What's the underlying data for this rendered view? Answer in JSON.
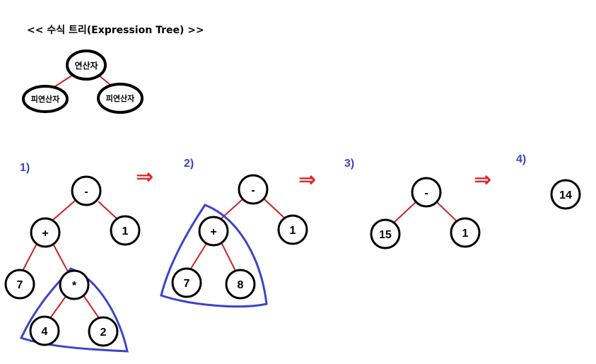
{
  "title": "<< 수식 트리(Expression Tree) >>",
  "legend": {
    "operator": "연산자",
    "operand_left": "피연산자",
    "operand_right": "피연산자"
  },
  "steps": [
    {
      "label": "1)"
    },
    {
      "label": "2)"
    },
    {
      "label": "3)"
    },
    {
      "label": "4)"
    }
  ],
  "arrow_symbol": "⇒",
  "trees": {
    "step1": {
      "root": "-",
      "plus": "+",
      "one": "1",
      "seven": "7",
      "mult": "*",
      "four": "4",
      "two": "2"
    },
    "step2": {
      "root": "-",
      "plus": "+",
      "one": "1",
      "seven": "7",
      "eight": "8"
    },
    "step3": {
      "root": "-",
      "fifteen": "15",
      "one": "1"
    },
    "step4": {
      "result": "14"
    }
  },
  "colors": {
    "edge": "#cc2222",
    "node_stroke": "#000000",
    "highlight": "#3c44c8",
    "step_label": "#3c44c8",
    "arrow": "#e0282a"
  }
}
